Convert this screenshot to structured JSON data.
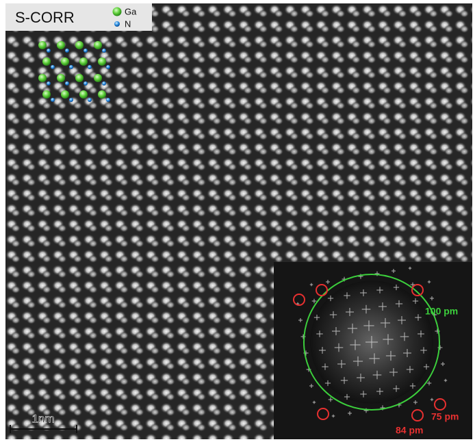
{
  "label": "S-CORR",
  "legend": {
    "items": [
      "Ga",
      "N"
    ]
  },
  "scale_bar": "1nm",
  "fft_inset": {
    "circle_label": "100 pm",
    "spot_labels": [
      "75 pm",
      "84 pm"
    ]
  }
}
